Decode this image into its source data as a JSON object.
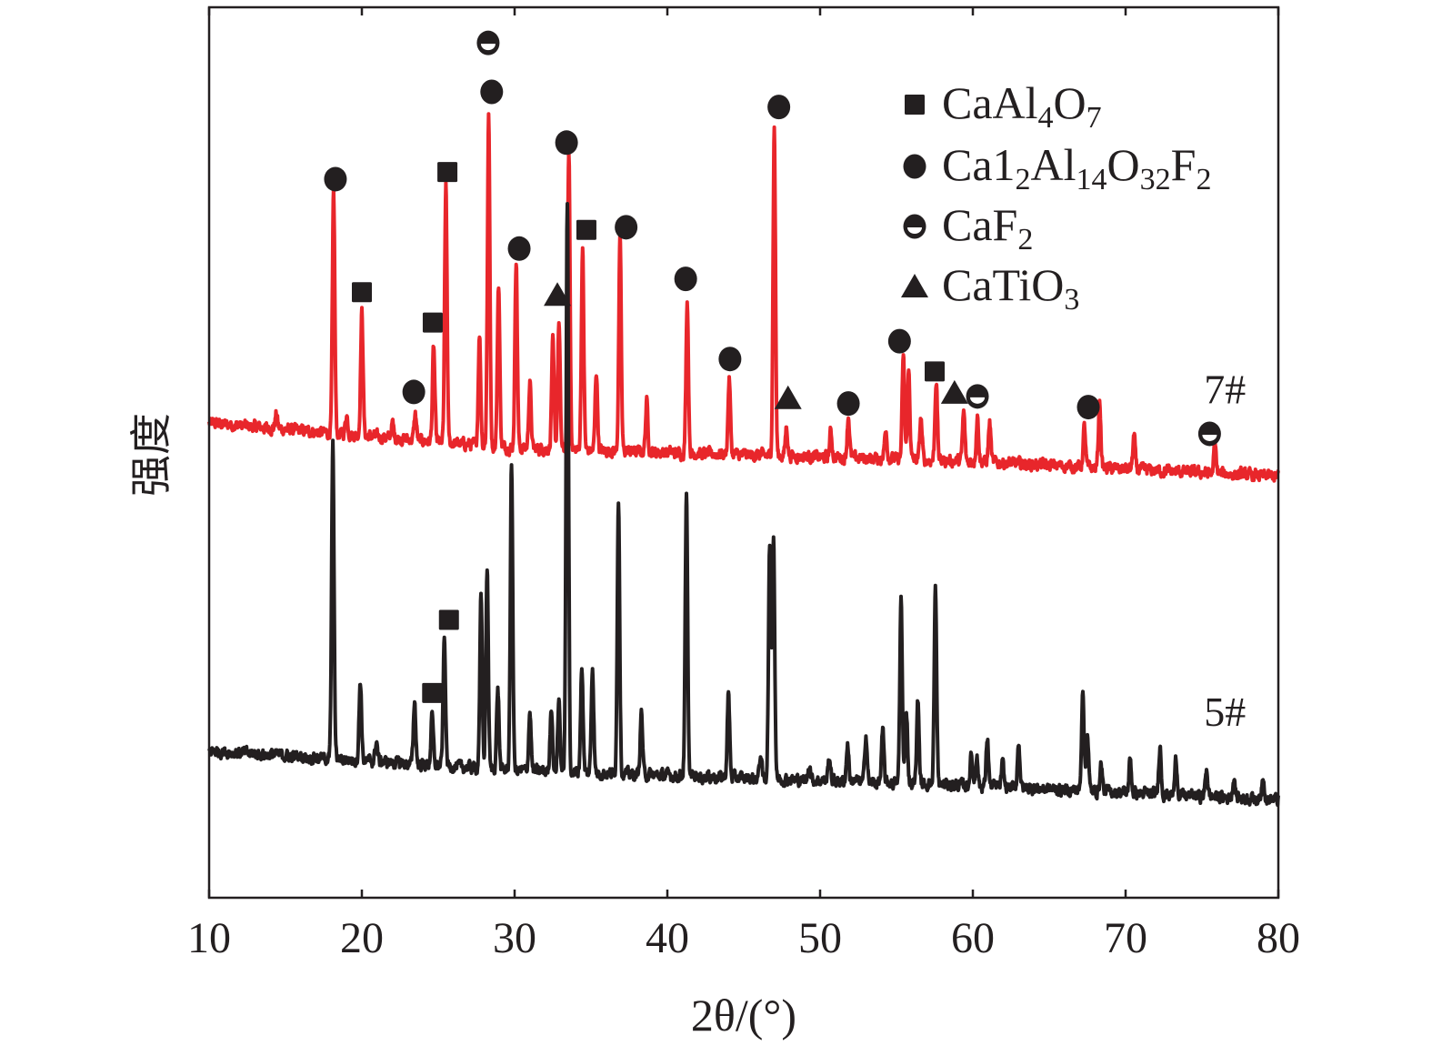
{
  "chart_data": {
    "type": "line",
    "xlabel": "2θ/(°)",
    "ylabel": "强度",
    "xlim": [
      10,
      80
    ],
    "ylim": [
      0,
      100
    ],
    "xticks": [
      "10",
      "20",
      "30",
      "40",
      "50",
      "60",
      "70",
      "80"
    ],
    "y_scale_note_visible": false,
    "grid": false,
    "legend_position": "top-right",
    "colors": {
      "7#": "#e8262b",
      "5#": "#231f20",
      "markers": "#231f20"
    },
    "legend": [
      {
        "phase": "CaAl4O7",
        "marker": "square",
        "parts": [
          "CaAl",
          "4",
          "O",
          "7"
        ]
      },
      {
        "phase": "Ca12Al14O32F2",
        "marker": "circle",
        "parts": [
          "Ca1",
          "2",
          "Al",
          "14",
          "O",
          "32",
          "F",
          "2"
        ]
      },
      {
        "phase": "CaF2",
        "marker": "half-circle",
        "parts": [
          "CaF",
          "2"
        ]
      },
      {
        "phase": "CaTiO3",
        "marker": "triangle",
        "parts": [
          "CaTiO",
          "3"
        ]
      }
    ],
    "series": [
      {
        "name": "7#",
        "color": "#e8262b",
        "baseline": [
          [
            10,
            53.3
          ],
          [
            30,
            50.5
          ],
          [
            60,
            49
          ],
          [
            80,
            47.3
          ]
        ],
        "peaks": [
          [
            14.4,
            54.3
          ],
          [
            18.15,
            79.1
          ],
          [
            19.0,
            54.3
          ],
          [
            20.0,
            65.8
          ],
          [
            22.0,
            53.3
          ],
          [
            23.5,
            54.3
          ],
          [
            24.7,
            61.8
          ],
          [
            25.5,
            79.9
          ],
          [
            27.7,
            63.2
          ],
          [
            28.3,
            87.7
          ],
          [
            28.95,
            68.9
          ],
          [
            30.1,
            71.7
          ],
          [
            31.0,
            57.9
          ],
          [
            32.5,
            62.5
          ],
          [
            32.9,
            64.6
          ],
          [
            33.55,
            83.7
          ],
          [
            34.45,
            72.7
          ],
          [
            35.35,
            59.1
          ],
          [
            36.9,
            74.1
          ],
          [
            38.65,
            55.7
          ],
          [
            41.3,
            67.1
          ],
          [
            44.05,
            58.2
          ],
          [
            47.0,
            86.5
          ],
          [
            47.8,
            52.8
          ],
          [
            50.7,
            52.3
          ],
          [
            51.85,
            54.1
          ],
          [
            54.3,
            52.8
          ],
          [
            55.45,
            60.7
          ],
          [
            55.8,
            59.1
          ],
          [
            56.6,
            53.8
          ],
          [
            57.6,
            58.1
          ],
          [
            59.4,
            54.5
          ],
          [
            60.3,
            54.0
          ],
          [
            61.1,
            53.3
          ],
          [
            67.3,
            52.8
          ],
          [
            68.3,
            55.6
          ],
          [
            70.55,
            51.8
          ],
          [
            75.85,
            50.8
          ]
        ]
      },
      {
        "name": "5#",
        "color": "#231f20",
        "baseline": [
          [
            10,
            16.5
          ],
          [
            30,
            14.3
          ],
          [
            60,
            12.6
          ],
          [
            80,
            11
          ]
        ],
        "peaks": [
          [
            18.1,
            50.8
          ],
          [
            19.9,
            24.4
          ],
          [
            20.95,
            17.6
          ],
          [
            23.45,
            22.0
          ],
          [
            24.6,
            20.4
          ],
          [
            25.4,
            29.0
          ],
          [
            27.8,
            33.7
          ],
          [
            28.2,
            36.9
          ],
          [
            28.9,
            23.5
          ],
          [
            29.8,
            48.5
          ],
          [
            31.0,
            20.9
          ],
          [
            32.4,
            21.6
          ],
          [
            32.9,
            22.2
          ],
          [
            33.45,
            78.3
          ],
          [
            34.4,
            26.0
          ],
          [
            35.1,
            26.0
          ],
          [
            36.8,
            44.8
          ],
          [
            38.3,
            20.8
          ],
          [
            41.25,
            45.0
          ],
          [
            44.0,
            22.9
          ],
          [
            46.1,
            16.0
          ],
          [
            46.7,
            39.0
          ],
          [
            46.95,
            40.6
          ],
          [
            49.3,
            15.0
          ],
          [
            50.6,
            15.8
          ],
          [
            51.8,
            17.3
          ],
          [
            53.0,
            18.4
          ],
          [
            54.1,
            18.6
          ],
          [
            55.3,
            33.7
          ],
          [
            55.65,
            21.1
          ],
          [
            56.4,
            22.2
          ],
          [
            57.55,
            34.6
          ],
          [
            59.9,
            16.0
          ],
          [
            60.25,
            16.0
          ],
          [
            60.95,
            17.9
          ],
          [
            61.95,
            15.0
          ],
          [
            63.0,
            17.5
          ],
          [
            67.2,
            23.6
          ],
          [
            67.5,
            18.6
          ],
          [
            68.4,
            15.0
          ],
          [
            70.3,
            15.5
          ],
          [
            72.25,
            17.1
          ],
          [
            73.3,
            15.5
          ],
          [
            75.3,
            14.5
          ],
          [
            77.1,
            13.5
          ],
          [
            79.0,
            13.8
          ]
        ]
      }
    ],
    "markers": [
      {
        "series": "7#",
        "phase": "circle",
        "x": 18.27,
        "y": 80.7
      },
      {
        "series": "7#",
        "phase": "square",
        "x": 20.0,
        "y": 68.0
      },
      {
        "series": "7#",
        "phase": "circle",
        "x": 23.4,
        "y": 56.8
      },
      {
        "series": "7#",
        "phase": "square",
        "x": 24.64,
        "y": 64.6
      },
      {
        "series": "7#",
        "phase": "square",
        "x": 25.6,
        "y": 81.5
      },
      {
        "series": "7#",
        "phase": "half-circle",
        "x": 28.27,
        "y": 96.0
      },
      {
        "series": "7#",
        "phase": "circle",
        "x": 28.5,
        "y": 90.5
      },
      {
        "series": "7#",
        "phase": "circle",
        "x": 30.3,
        "y": 72.9
      },
      {
        "series": "7#",
        "phase": "triangle",
        "x": 32.8,
        "y": 67.7
      },
      {
        "series": "7#",
        "phase": "circle",
        "x": 33.4,
        "y": 84.8
      },
      {
        "series": "7#",
        "phase": "square",
        "x": 34.7,
        "y": 75.0
      },
      {
        "series": "7#",
        "phase": "circle",
        "x": 37.3,
        "y": 75.3
      },
      {
        "series": "7#",
        "phase": "circle",
        "x": 41.2,
        "y": 69.5
      },
      {
        "series": "7#",
        "phase": "circle",
        "x": 44.1,
        "y": 60.5
      },
      {
        "series": "7#",
        "phase": "circle",
        "x": 47.3,
        "y": 88.8
      },
      {
        "series": "7#",
        "phase": "triangle",
        "x": 47.9,
        "y": 56.1
      },
      {
        "series": "7#",
        "phase": "circle",
        "x": 51.85,
        "y": 55.5
      },
      {
        "series": "7#",
        "phase": "circle",
        "x": 55.2,
        "y": 62.5
      },
      {
        "series": "7#",
        "phase": "square",
        "x": 57.5,
        "y": 59.1
      },
      {
        "series": "7#",
        "phase": "triangle",
        "x": 58.8,
        "y": 56.7
      },
      {
        "series": "7#",
        "phase": "half-circle",
        "x": 60.3,
        "y": 56.3
      },
      {
        "series": "7#",
        "phase": "circle",
        "x": 67.56,
        "y": 55.1
      },
      {
        "series": "7#",
        "phase": "half-circle",
        "x": 75.5,
        "y": 52.1
      },
      {
        "series": "5#",
        "phase": "square",
        "x": 25.7,
        "y": 31.2
      },
      {
        "series": "5#",
        "phase": "square",
        "x": 24.6,
        "y": 23.0
      }
    ],
    "series_labels": [
      {
        "text": "7#",
        "x": 76.5,
        "y": 55.5
      },
      {
        "text": "5#",
        "x": 76.5,
        "y": 19.3
      }
    ]
  }
}
